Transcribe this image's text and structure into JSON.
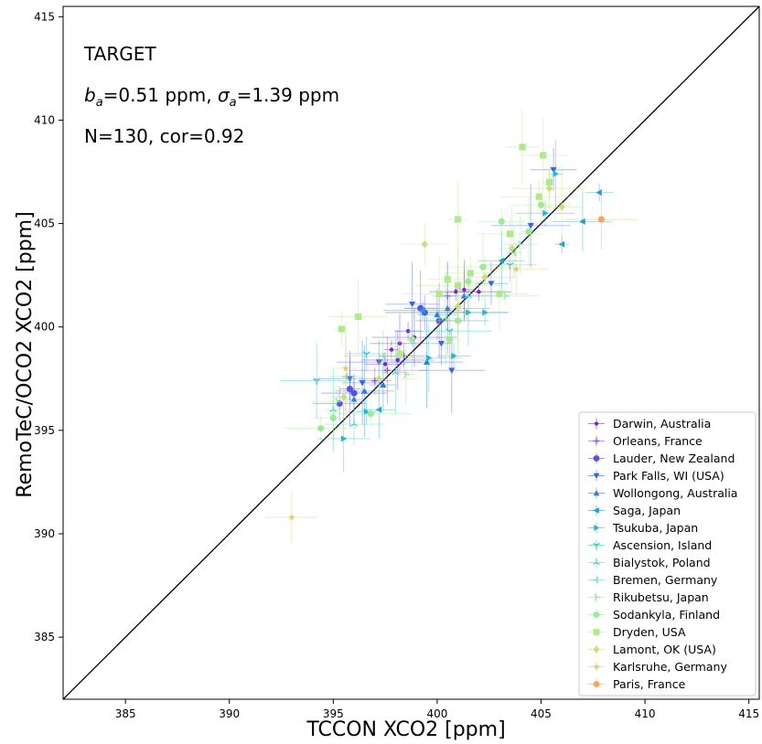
{
  "chart_data": {
    "type": "scatter",
    "xlabel": "TCCON XCO2 [ppm]",
    "ylabel": "RemoTeC/OCO2 XCO2 [ppm]",
    "xlim": [
      382,
      415.5
    ],
    "ylim": [
      382,
      415.5
    ],
    "xticks": [
      385,
      390,
      395,
      400,
      405,
      410,
      415
    ],
    "yticks": [
      385,
      390,
      395,
      400,
      405,
      410,
      415
    ],
    "grid": false,
    "legend_position": "lower-right",
    "reference_line": "1:1",
    "annotations": {
      "label": "TARGET",
      "bias": "b_a=0.51 ppm, σ_a=1.39 ppm",
      "bias_parts": {
        "b_sym": "b",
        "b_sub": "a",
        "b_val": "=0.51 ppm, ",
        "s_sym": "σ",
        "s_sub": "a",
        "s_val": "=1.39 ppm"
      },
      "stats": "N=130, cor=0.92"
    },
    "series": [
      {
        "name": "Darwin, Australia",
        "color": "#7b1fd6",
        "marker": "dot-small",
        "points": [
          [
            397.8,
            398.9
          ],
          [
            398.2,
            399.2
          ],
          [
            398.6,
            399.8
          ],
          [
            398.1,
            398.4
          ],
          [
            397.5,
            398.2
          ],
          [
            398.9,
            399.5
          ],
          [
            400.9,
            401.7
          ],
          [
            401.3,
            401.8
          ],
          [
            402.0,
            401.7
          ]
        ]
      },
      {
        "name": "Orleans, France",
        "color": "#8a4fe8",
        "marker": "plus",
        "points": [
          [
            397.0,
            397.4
          ],
          [
            397.6,
            397.9
          ],
          [
            398.4,
            398.6
          ],
          [
            400.5,
            401.5
          ],
          [
            401.0,
            400.3
          ]
        ]
      },
      {
        "name": "Lauder, New Zealand",
        "color": "#5b4fe8",
        "marker": "circle",
        "points": [
          [
            395.3,
            396.3
          ],
          [
            395.8,
            397.0
          ],
          [
            396.0,
            396.8
          ],
          [
            399.2,
            400.9
          ],
          [
            399.4,
            400.7
          ],
          [
            400.1,
            400.3
          ]
        ]
      },
      {
        "name": "Park Falls, WI (USA)",
        "color": "#3a63e0",
        "marker": "triangle-down",
        "points": [
          [
            395.8,
            397.5
          ],
          [
            396.4,
            397.3
          ],
          [
            397.2,
            398.3
          ],
          [
            398.8,
            401.1
          ],
          [
            400.2,
            399.2
          ],
          [
            400.7,
            397.9
          ],
          [
            402.6,
            402.1
          ],
          [
            404.5,
            404.9
          ],
          [
            405.6,
            407.6
          ]
        ]
      },
      {
        "name": "Wollongong, Australia",
        "color": "#2f7fd8",
        "marker": "triangle-up",
        "points": [
          [
            396.0,
            396.5
          ],
          [
            396.5,
            396.9
          ],
          [
            397.4,
            397.2
          ],
          [
            399.5,
            398.3
          ],
          [
            400.0,
            400.6
          ],
          [
            400.5,
            400.9
          ],
          [
            401.3,
            401.5
          ]
        ]
      },
      {
        "name": "Saga, Japan",
        "color": "#1f9fd0",
        "marker": "triangle-left",
        "points": [
          [
            397.2,
            396.0
          ],
          [
            399.3,
            400.8
          ],
          [
            403.1,
            403.2
          ],
          [
            406.0,
            404.0
          ],
          [
            407.0,
            405.1
          ],
          [
            407.8,
            406.5
          ]
        ]
      },
      {
        "name": "Tsukuba, Japan",
        "color": "#22b8d2",
        "marker": "triangle-right",
        "points": [
          [
            395.5,
            394.6
          ],
          [
            396.6,
            395.9
          ],
          [
            399.6,
            398.5
          ],
          [
            400.8,
            398.6
          ],
          [
            401.5,
            400.7
          ],
          [
            402.3,
            400.7
          ],
          [
            405.7,
            407.4
          ],
          [
            405.2,
            405.5
          ]
        ]
      },
      {
        "name": "Ascension, Island",
        "color": "#33c9c4",
        "marker": "tri-down",
        "points": [
          [
            394.2,
            397.4
          ],
          [
            396.6,
            398.7
          ],
          [
            400.6,
            399.8
          ],
          [
            403.5,
            403.0
          ]
        ]
      },
      {
        "name": "Bialystok, Poland",
        "color": "#55d6bf",
        "marker": "tri-up",
        "points": [
          [
            395.0,
            396.0
          ],
          [
            396.0,
            395.3
          ],
          [
            398.0,
            397.8
          ],
          [
            401.5,
            401.5
          ]
        ]
      },
      {
        "name": "Bremen, Germany",
        "color": "#78dcb2",
        "marker": "tri-left",
        "points": [
          [
            395.6,
            397.6
          ],
          [
            397.4,
            398.6
          ],
          [
            400.4,
            400.4
          ],
          [
            403.7,
            403.6
          ]
        ]
      },
      {
        "name": "Rikubetsu, Japan",
        "color": "#8fe5a8",
        "marker": "tri-right",
        "points": [
          [
            395.2,
            396.4
          ],
          [
            398.5,
            397.7
          ],
          [
            403.3,
            401.5
          ],
          [
            404.0,
            404.0
          ]
        ]
      },
      {
        "name": "Sodankyla, Finland",
        "color": "#9ee89a",
        "marker": "circle",
        "points": [
          [
            394.4,
            395.1
          ],
          [
            395.0,
            395.6
          ],
          [
            396.8,
            395.8
          ],
          [
            398.8,
            399.4
          ],
          [
            400.6,
            399.4
          ],
          [
            401.0,
            400.3
          ],
          [
            401.5,
            402.2
          ],
          [
            402.2,
            402.9
          ],
          [
            403.1,
            405.1
          ],
          [
            404.4,
            404.6
          ],
          [
            405.0,
            405.9
          ]
        ]
      },
      {
        "name": "Dryden, USA",
        "color": "#b1e88a",
        "marker": "square",
        "points": [
          [
            395.4,
            399.9
          ],
          [
            396.2,
            400.5
          ],
          [
            398.2,
            398.7
          ],
          [
            400.1,
            401.6
          ],
          [
            400.5,
            402.3
          ],
          [
            401.0,
            402.0
          ],
          [
            401.6,
            402.6
          ],
          [
            401.0,
            405.2
          ],
          [
            403.5,
            404.5
          ],
          [
            404.1,
            408.7
          ],
          [
            404.9,
            406.3
          ],
          [
            405.1,
            408.3
          ],
          [
            405.4,
            407.0
          ],
          [
            403.0,
            401.6
          ]
        ]
      },
      {
        "name": "Lamont, OK (USA)",
        "color": "#c9df7e",
        "marker": "diamond",
        "points": [
          [
            395.5,
            396.6
          ],
          [
            397.2,
            397.5
          ],
          [
            399.4,
            404.0
          ],
          [
            401.0,
            401.0
          ],
          [
            402.3,
            402.4
          ],
          [
            403.6,
            403.8
          ],
          [
            405.4,
            406.7
          ],
          [
            406.0,
            405.8
          ]
        ]
      },
      {
        "name": "Karlsruhe, Germany",
        "color": "#e9c66a",
        "marker": "star",
        "points": [
          [
            393.0,
            390.8
          ],
          [
            395.6,
            398.0
          ],
          [
            403.8,
            402.8
          ]
        ]
      },
      {
        "name": "Paris, France",
        "color": "#f3a55e",
        "marker": "circle",
        "points": [
          [
            407.9,
            405.2
          ]
        ]
      }
    ]
  }
}
